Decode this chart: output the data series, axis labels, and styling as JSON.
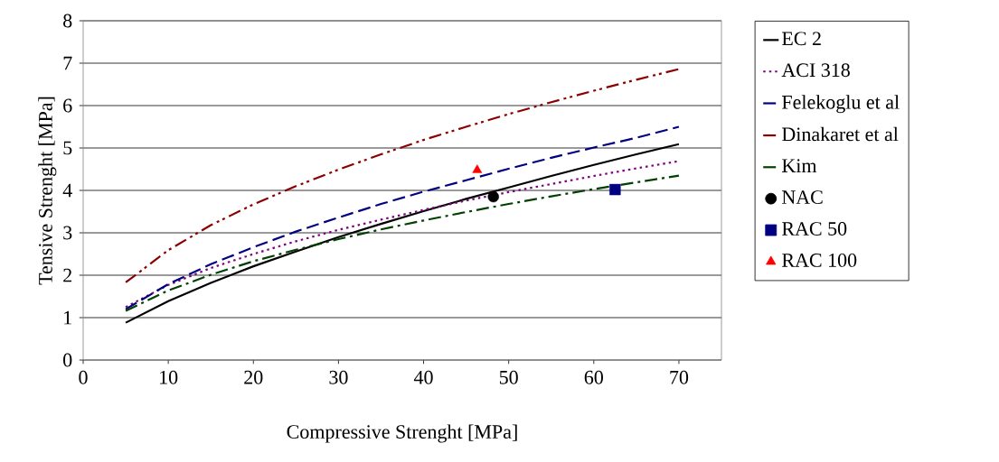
{
  "chart_data": {
    "type": "line",
    "xlabel": "Compressive Strenght [MPa]",
    "ylabel": "Tensive Strenght [MPa]",
    "x": [
      5,
      10,
      15,
      20,
      25,
      30,
      35,
      40,
      45,
      50,
      55,
      60,
      65,
      70
    ],
    "series": [
      {
        "name": "EC 2",
        "color": "#000000",
        "line_style": "solid",
        "values": [
          0.88,
          1.39,
          1.82,
          2.21,
          2.56,
          2.9,
          3.21,
          3.51,
          3.8,
          4.07,
          4.34,
          4.6,
          4.85,
          5.09
        ]
      },
      {
        "name": "ACI 318",
        "color": "#800080",
        "line_style": "dotted",
        "values": [
          1.25,
          1.77,
          2.17,
          2.5,
          2.8,
          3.07,
          3.31,
          3.54,
          3.76,
          3.96,
          4.15,
          4.34,
          4.52,
          4.69
        ]
      },
      {
        "name": "Felekoglu et al",
        "color": "#000080",
        "line_style": "dashed",
        "values": [
          1.2,
          1.79,
          2.26,
          2.66,
          3.03,
          3.36,
          3.68,
          3.97,
          4.24,
          4.51,
          4.77,
          5.01,
          5.24,
          5.5
        ]
      },
      {
        "name": "Dinakaret et al",
        "color": "#8b0000",
        "line_style": "dashdotdot",
        "values": [
          1.83,
          2.59,
          3.18,
          3.67,
          4.1,
          4.49,
          4.85,
          5.19,
          5.5,
          5.8,
          6.08,
          6.35,
          6.61,
          6.86
        ]
      },
      {
        "name": "Kim",
        "color": "#004000",
        "line_style": "dashdot",
        "values": [
          1.16,
          1.64,
          2.01,
          2.33,
          2.6,
          2.85,
          3.08,
          3.29,
          3.49,
          3.68,
          3.86,
          4.03,
          4.19,
          4.35
        ]
      },
      {
        "name": "NAC",
        "type": "scatter",
        "marker": "circle",
        "color": "#000000",
        "x": [
          48.2
        ],
        "values": [
          3.85
        ]
      },
      {
        "name": "RAC 50",
        "type": "scatter",
        "marker": "square",
        "color": "#000080",
        "x": [
          62.5
        ],
        "values": [
          4.02
        ]
      },
      {
        "name": "RAC 100",
        "type": "scatter",
        "marker": "triangle",
        "color": "#ff0000",
        "x": [
          46.3
        ],
        "values": [
          4.48
        ]
      }
    ],
    "xlim": [
      0,
      75
    ],
    "ylim": [
      0,
      8
    ],
    "xticks": [
      0,
      10,
      20,
      30,
      40,
      50,
      60,
      70
    ],
    "yticks": [
      0,
      1,
      2,
      3,
      4,
      5,
      6,
      7,
      8
    ],
    "grid": "y",
    "legend": "right"
  }
}
